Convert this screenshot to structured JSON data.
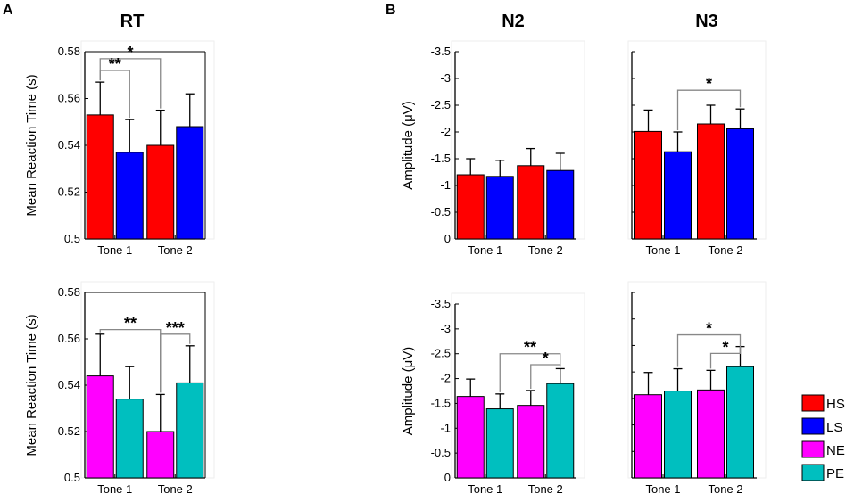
{
  "panel_labels": {
    "a": "A",
    "b": "B"
  },
  "column_titles": {
    "rt": "RT",
    "n2": "N2",
    "n3": "N3"
  },
  "colors": {
    "HS": "#ff0000",
    "LS": "#0000ff",
    "NE": "#ff00ff",
    "PE": "#00bfbf"
  },
  "legend": [
    "HS",
    "LS",
    "NE",
    "PE"
  ],
  "chart_data": [
    {
      "id": "rt-top",
      "type": "bar",
      "categories": [
        "Tone 1",
        "Tone 2"
      ],
      "ylabel": "Mean Reaction Time (s)",
      "ylim": [
        0.5,
        0.58
      ],
      "reversed": false,
      "yticks": [
        "0.5",
        "0.52",
        "0.54",
        "0.56",
        "0.58"
      ],
      "series": [
        {
          "name": "HS",
          "values": [
            0.553,
            0.54
          ],
          "errors": [
            0.014,
            0.015
          ]
        },
        {
          "name": "LS",
          "values": [
            0.537,
            0.548
          ],
          "errors": [
            0.014,
            0.014
          ]
        }
      ],
      "significance": [
        {
          "label": "*",
          "from": [
            0,
            0
          ],
          "to": [
            1,
            0
          ],
          "top": 0.577
        },
        {
          "label": "**",
          "from": [
            0,
            0
          ],
          "to": [
            0,
            1
          ],
          "top": 0.572
        }
      ]
    },
    {
      "id": "n2-top",
      "type": "bar",
      "categories": [
        "Tone 1",
        "Tone 2"
      ],
      "ylabel": "Amplitude (μV)",
      "ylim": [
        0,
        -3.5
      ],
      "reversed": true,
      "yticks": [
        "0",
        "-0.5",
        "-1",
        "-1.5",
        "-2",
        "-2.5",
        "-3",
        "-3.5"
      ],
      "series": [
        {
          "name": "HS",
          "values": [
            -1.2,
            -1.37
          ],
          "errors": [
            0.3,
            0.32
          ]
        },
        {
          "name": "LS",
          "values": [
            -1.17,
            -1.28
          ],
          "errors": [
            0.3,
            0.32
          ]
        }
      ],
      "significance": []
    },
    {
      "id": "n3-top",
      "type": "bar",
      "categories": [
        "Tone 1",
        "Tone 2"
      ],
      "ylabel": "",
      "ylim": [
        0,
        -3.5
      ],
      "reversed": true,
      "yticks": [],
      "series": [
        {
          "name": "HS",
          "values": [
            -2.01,
            -2.15
          ],
          "errors": [
            0.4,
            0.35
          ]
        },
        {
          "name": "LS",
          "values": [
            -1.63,
            -2.06
          ],
          "errors": [
            0.37,
            0.37
          ]
        }
      ],
      "significance": [
        {
          "label": "*",
          "from": [
            0,
            1
          ],
          "to": [
            1,
            1
          ],
          "top": -2.78
        }
      ]
    },
    {
      "id": "rt-bottom",
      "type": "bar",
      "categories": [
        "Tone 1",
        "Tone 2"
      ],
      "ylabel": "Mean Reaction Time (s)",
      "ylim": [
        0.5,
        0.58
      ],
      "reversed": false,
      "yticks": [
        "0.5",
        "0.52",
        "0.54",
        "0.56",
        "0.58"
      ],
      "series": [
        {
          "name": "NE",
          "values": [
            0.544,
            0.52
          ],
          "errors": [
            0.018,
            0.016
          ]
        },
        {
          "name": "PE",
          "values": [
            0.534,
            0.541
          ],
          "errors": [
            0.014,
            0.016
          ]
        }
      ],
      "significance": [
        {
          "label": "**",
          "from": [
            0,
            0
          ],
          "to": [
            1,
            0
          ],
          "top": 0.564
        },
        {
          "label": "***",
          "from": [
            1,
            0
          ],
          "to": [
            1,
            1
          ],
          "top": 0.562
        }
      ]
    },
    {
      "id": "n2-bottom",
      "type": "bar",
      "categories": [
        "Tone 1",
        "Tone 2"
      ],
      "ylabel": "Amplitude (μV)",
      "ylim": [
        0,
        -3.5
      ],
      "reversed": true,
      "yticks": [
        "0",
        "-0.5",
        "-1",
        "-1.5",
        "-2",
        "-2.5",
        "-3",
        "-3.5"
      ],
      "series": [
        {
          "name": "NE",
          "values": [
            -1.64,
            -1.46
          ],
          "errors": [
            0.35,
            0.3
          ]
        },
        {
          "name": "PE",
          "values": [
            -1.39,
            -1.9
          ],
          "errors": [
            0.3,
            0.3
          ]
        }
      ],
      "significance": [
        {
          "label": "**",
          "from": [
            0,
            1
          ],
          "to": [
            1,
            1
          ],
          "top": -2.5
        },
        {
          "label": "*",
          "from": [
            1,
            0
          ],
          "to": [
            1,
            1
          ],
          "top": -2.28
        }
      ]
    },
    {
      "id": "n3-bottom",
      "type": "bar",
      "categories": [
        "Tone 1",
        "Tone 2"
      ],
      "ylabel": "",
      "ylim": [
        0,
        -3.5
      ],
      "reversed": true,
      "yticks": [],
      "series": [
        {
          "name": "NE",
          "values": [
            -1.57,
            -1.66
          ],
          "errors": [
            0.42,
            0.37
          ]
        },
        {
          "name": "PE",
          "values": [
            -1.64,
            -2.1
          ],
          "errors": [
            0.42,
            0.38
          ]
        }
      ],
      "significance": [
        {
          "label": "*",
          "from": [
            0,
            1
          ],
          "to": [
            1,
            1
          ],
          "top": -2.7
        },
        {
          "label": "*",
          "from": [
            1,
            0
          ],
          "to": [
            1,
            1
          ],
          "top": -2.35
        }
      ]
    }
  ]
}
